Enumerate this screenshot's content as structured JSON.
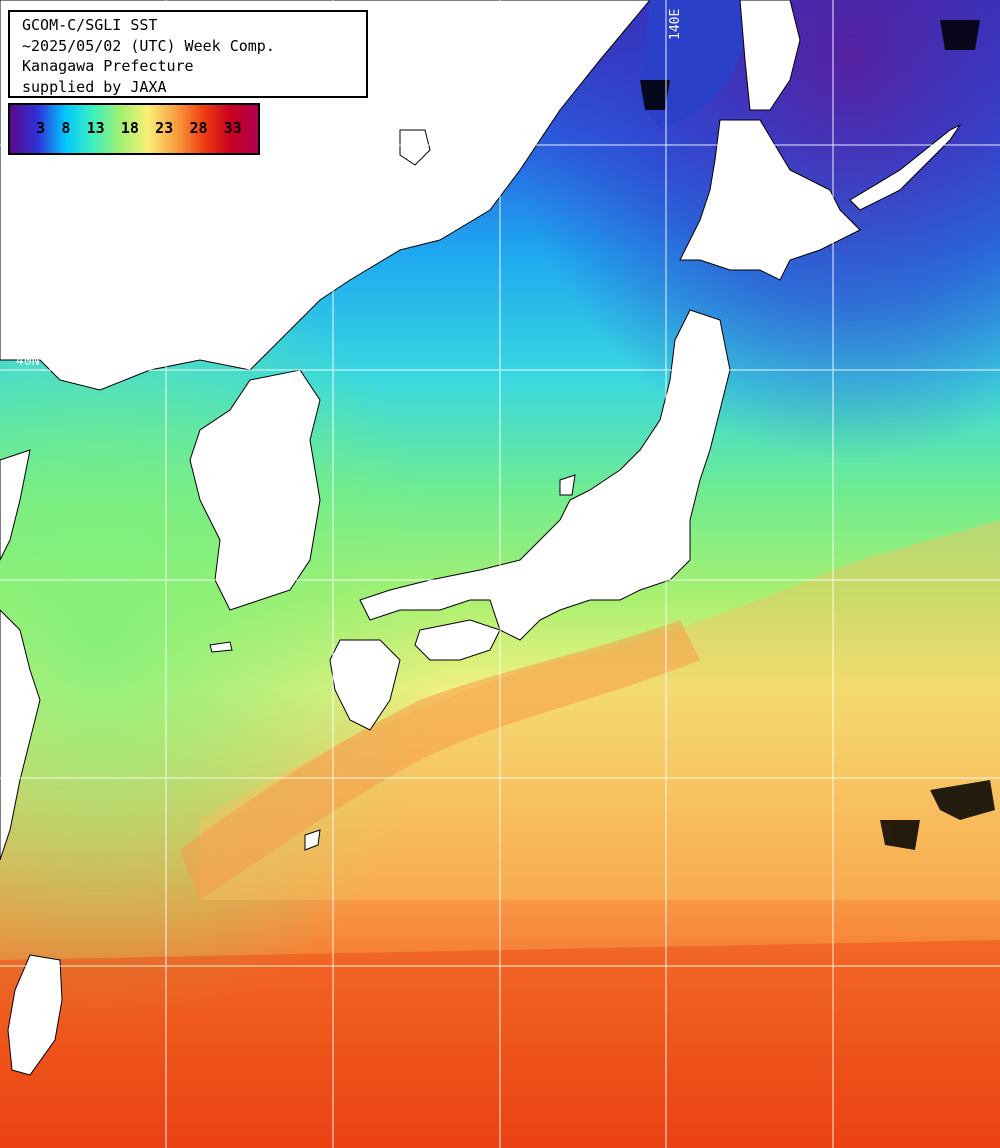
{
  "info": {
    "line1": "GCOM-C/SGLI SST",
    "line2": "~2025/05/02 (UTC) Week Comp.",
    "line3": "Kanagawa Prefecture",
    "line4": "supplied by JAXA"
  },
  "legend": {
    "ticks": [
      "3",
      "8",
      "13",
      "18",
      "23",
      "28",
      "33"
    ],
    "colors": [
      "#5a0a8a",
      "#3030d8",
      "#00c8ff",
      "#3cf0c0",
      "#a0f070",
      "#f8f078",
      "#f8a040",
      "#f04010",
      "#c80020",
      "#b00050"
    ]
  },
  "grid_labels": {
    "lon": "140E",
    "lat": "40N"
  },
  "colors": {
    "land": "#ffffff",
    "grid": "#ffffff"
  }
}
